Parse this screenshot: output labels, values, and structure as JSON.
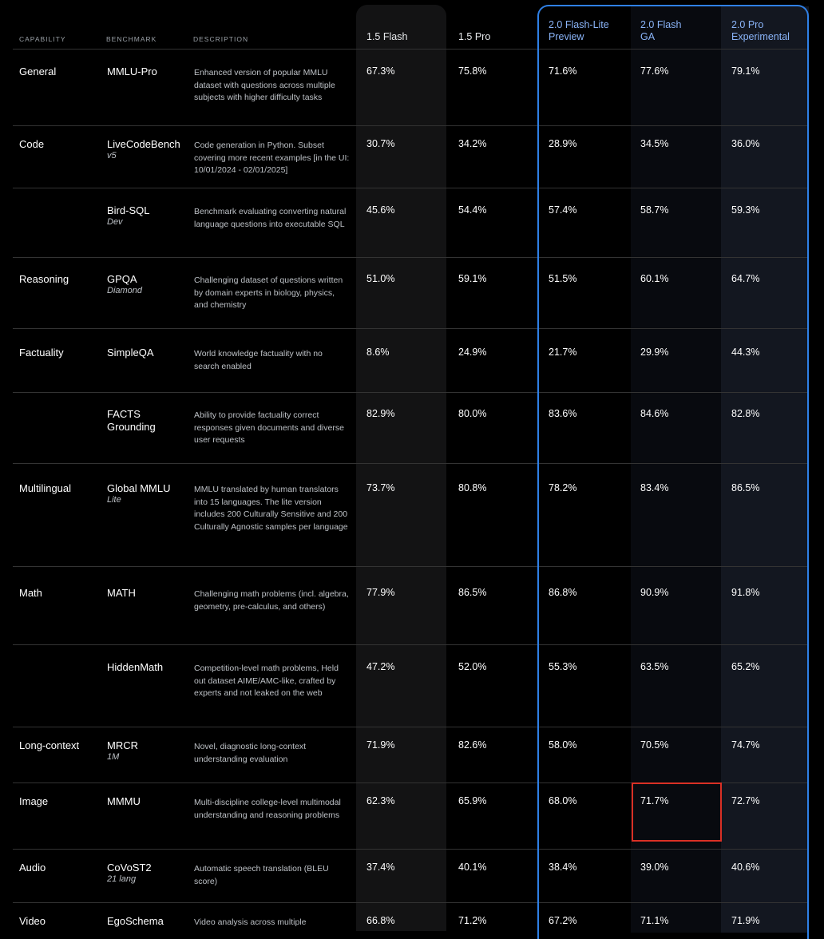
{
  "header": {
    "capability": "CAPABILITY",
    "benchmark": "BENCHMARK",
    "description": "DESCRIPTION",
    "models": [
      {
        "line1": "1.5 Flash",
        "line2": ""
      },
      {
        "line1": "1.5 Pro",
        "line2": ""
      },
      {
        "line1": "2.0 Flash-Lite",
        "line2": "Preview"
      },
      {
        "line1": "2.0 Flash",
        "line2": "GA"
      },
      {
        "line1": "2.0 Pro",
        "line2": "Experimental"
      }
    ]
  },
  "rows": [
    {
      "capability": "General",
      "benchmark": "MMLU-Pro",
      "sub": "",
      "description": "Enhanced version of popular MMLU dataset with questions across multiple subjects with higher difficulty tasks",
      "values": [
        "67.3%",
        "75.8%",
        "71.6%",
        "77.6%",
        "79.1%"
      ]
    },
    {
      "capability": "Code",
      "benchmark": "LiveCodeBench",
      "sub": "v5",
      "description": "Code generation in Python. Subset covering more recent examples [in the UI: 10/01/2024 - 02/01/2025]",
      "values": [
        "30.7%",
        "34.2%",
        "28.9%",
        "34.5%",
        "36.0%"
      ]
    },
    {
      "capability": "",
      "benchmark": "Bird-SQL",
      "sub": "Dev",
      "description": "Benchmark evaluating converting natural language questions into executable SQL",
      "values": [
        "45.6%",
        "54.4%",
        "57.4%",
        "58.7%",
        "59.3%"
      ]
    },
    {
      "capability": "Reasoning",
      "benchmark": "GPQA",
      "sub": "Diamond",
      "description": "Challenging dataset of questions written by domain experts in biology, physics, and chemistry",
      "values": [
        "51.0%",
        "59.1%",
        "51.5%",
        "60.1%",
        "64.7%"
      ]
    },
    {
      "capability": "Factuality",
      "benchmark": "SimpleQA",
      "sub": "",
      "description": "World knowledge factuality with no search enabled",
      "values": [
        "8.6%",
        "24.9%",
        "21.7%",
        "29.9%",
        "44.3%"
      ]
    },
    {
      "capability": "",
      "benchmark": "FACTS Grounding",
      "sub": "",
      "description": "Ability to provide factuality correct responses given documents and diverse user requests",
      "values": [
        "82.9%",
        "80.0%",
        "83.6%",
        "84.6%",
        "82.8%"
      ]
    },
    {
      "capability": "Multilingual",
      "benchmark": "Global MMLU",
      "sub": "Lite",
      "description": "MMLU translated by human translators into 15 languages. The lite version includes 200 Culturally Sensitive and 200 Culturally Agnostic samples per language",
      "values": [
        "73.7%",
        "80.8%",
        "78.2%",
        "83.4%",
        "86.5%"
      ]
    },
    {
      "capability": "Math",
      "benchmark": "MATH",
      "sub": "",
      "description": "Challenging math problems (incl. algebra, geometry, pre-calculus, and others)",
      "values": [
        "77.9%",
        "86.5%",
        "86.8%",
        "90.9%",
        "91.8%"
      ]
    },
    {
      "capability": "",
      "benchmark": "HiddenMath",
      "sub": "",
      "description": "Competition-level math problems, Held out dataset AIME/AMC-like, crafted by experts and not leaked on the web",
      "values": [
        "47.2%",
        "52.0%",
        "55.3%",
        "63.5%",
        "65.2%"
      ]
    },
    {
      "capability": "Long-context",
      "benchmark": "MRCR",
      "sub": "1M",
      "description": "Novel, diagnostic long-context understanding evaluation",
      "values": [
        "71.9%",
        "82.6%",
        "58.0%",
        "70.5%",
        "74.7%"
      ]
    },
    {
      "capability": "Image",
      "benchmark": "MMMU",
      "sub": "",
      "description": "Multi-discipline college-level multimodal understanding and reasoning problems",
      "values": [
        "62.3%",
        "65.9%",
        "68.0%",
        "71.7%",
        "72.7%"
      ]
    },
    {
      "capability": "Audio",
      "benchmark": "CoVoST2",
      "sub": "21 lang",
      "description": "Automatic speech translation (BLEU score)",
      "values": [
        "37.4%",
        "40.1%",
        "38.4%",
        "39.0%",
        "40.6%"
      ]
    },
    {
      "capability": "Video",
      "benchmark": "EgoSchema",
      "sub": "",
      "description": "Video analysis across multiple",
      "values": [
        "66.8%",
        "71.2%",
        "67.2%",
        "71.1%",
        "71.9%"
      ]
    }
  ]
}
